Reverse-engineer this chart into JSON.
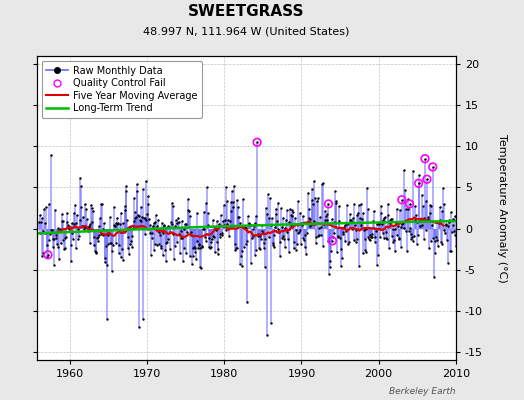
{
  "title": "SWEETGRASS",
  "subtitle": "48.997 N, 111.964 W (United States)",
  "ylabel_right": "Temperature Anomaly (°C)",
  "credit": "Berkeley Earth",
  "year_start": 1956.0,
  "year_end": 2011.0,
  "ylim": [
    -16,
    21
  ],
  "yticks": [
    -15,
    -10,
    -5,
    0,
    5,
    10,
    15,
    20
  ],
  "xticks": [
    1960,
    1970,
    1980,
    1990,
    2000,
    2010
  ],
  "bg_color": "#e8e8e8",
  "plot_bg_color": "#ffffff",
  "stem_color": "#6666ff",
  "dot_color": "#000000",
  "ma_color": "#dd0000",
  "trend_color": "#00bb00",
  "qc_color": "#ff00ff",
  "grid_color": "#aaaaaa",
  "title_fontsize": 11,
  "subtitle_fontsize": 8,
  "tick_fontsize": 8,
  "legend_fontsize": 7
}
